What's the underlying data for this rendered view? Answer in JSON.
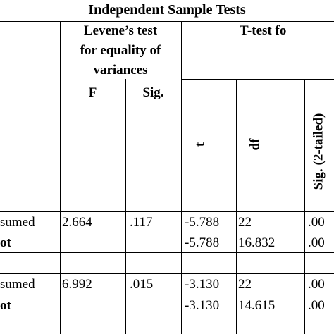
{
  "title": "Independent Sample Tests",
  "header": {
    "levene": [
      "Levene’s test",
      "for equality of",
      "variances"
    ],
    "ttest": "T-test fo",
    "columns": [
      "F",
      "Sig.",
      "t",
      "df",
      "Sig. (2-tailed)"
    ]
  },
  "table": {
    "rows": [
      [
        "sumed",
        "2.664",
        ".117",
        "-5.788",
        "22",
        ".00"
      ],
      [
        "ot",
        null,
        null,
        "-5.788",
        "16.832",
        ".00"
      ],
      [
        "sumed",
        "6.992",
        ".015",
        "-3.130",
        "22",
        ".00"
      ],
      [
        "ot",
        null,
        null,
        "-3.130",
        "14.615",
        ".00"
      ]
    ]
  }
}
